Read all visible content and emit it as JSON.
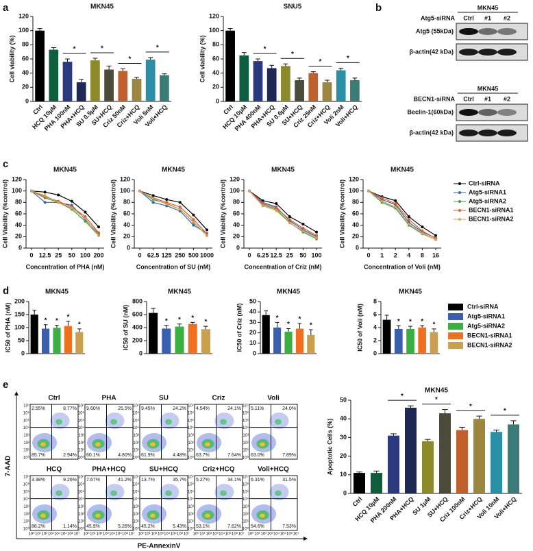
{
  "panel_labels": [
    "a",
    "b",
    "c",
    "d",
    "e"
  ],
  "chart_data": [
    {
      "type": "bar",
      "title": "MKN45",
      "ylabel": "Cell viability (%)",
      "categories": [
        "Ctrl",
        "HCQ 10μM",
        "PHA 100nM",
        "PHA+HCQ",
        "SU 0.5μM",
        "SU+HCQ",
        "Criz 50nM",
        "Criz+HCQ",
        "Voli 5nM",
        "Voli+HCQ"
      ],
      "values": [
        100,
        73,
        56,
        27,
        58,
        45,
        43,
        32,
        59,
        37
      ],
      "errors": [
        3,
        3,
        4,
        4,
        3,
        5,
        3,
        2,
        3,
        2
      ],
      "stars": [
        null,
        null,
        null,
        "*",
        null,
        "*",
        null,
        "*",
        null,
        "*"
      ],
      "colors": [
        "#000000",
        "#0d5e3c",
        "#2b3a7c",
        "#1e2a55",
        "#8c8a2a",
        "#4c4a38",
        "#c0602c",
        "#9c8640",
        "#2a8fa4",
        "#3c7c78"
      ],
      "ylim": [
        0,
        120
      ],
      "yticks": [
        0,
        20,
        40,
        60,
        80,
        100,
        120
      ]
    },
    {
      "type": "bar",
      "title": "SNU5",
      "ylabel": "Cell viability (%)",
      "categories": [
        "Ctrl",
        "HCQ 10μM",
        "PHA 400nM",
        "PHA+HCQ",
        "SU 0.6μM",
        "SU+HCQ",
        "Criz 25nM",
        "Criz+HCQ",
        "Voli 2nM",
        "Voli+HCQ"
      ],
      "values": [
        100,
        65,
        57,
        47,
        50,
        30,
        40,
        27,
        44,
        30
      ],
      "errors": [
        3,
        4,
        3,
        4,
        3,
        3,
        2,
        3,
        3,
        3
      ],
      "stars": [
        null,
        null,
        null,
        "*",
        null,
        "*",
        null,
        "*",
        null,
        "*"
      ],
      "colors": [
        "#000000",
        "#0d5e3c",
        "#2b3a7c",
        "#1e2a55",
        "#8c8a2a",
        "#4c4a38",
        "#c0602c",
        "#9c8640",
        "#2a8fa4",
        "#3c7c78"
      ],
      "ylim": [
        0,
        120
      ],
      "yticks": [
        0,
        20,
        40,
        60,
        80,
        100,
        120
      ]
    },
    {
      "type": "line",
      "title": "MKN45",
      "ylabel": "Cell Viability (%control)",
      "xlabel": "Concentration of PHA (nM)",
      "categories": [
        "0",
        "12.5",
        "25",
        "50",
        "100",
        "200"
      ],
      "series": [
        {
          "color": "#000000",
          "values": [
            100,
            98,
            93,
            82,
            63,
            37
          ]
        },
        {
          "color": "#3a5fb0",
          "values": [
            100,
            80,
            80,
            75,
            50,
            25
          ]
        },
        {
          "color": "#3aa040",
          "values": [
            100,
            88,
            80,
            68,
            47,
            22
          ]
        },
        {
          "color": "#e05a2a",
          "values": [
            100,
            90,
            82,
            72,
            55,
            27
          ]
        },
        {
          "color": "#d0a060",
          "values": [
            100,
            92,
            80,
            70,
            52,
            22
          ]
        }
      ],
      "ylim": [
        0,
        120
      ],
      "yticks": [
        0,
        20,
        40,
        60,
        80,
        100,
        120
      ]
    },
    {
      "type": "line",
      "title": "MKN45",
      "ylabel": "Cell Viability (%control)",
      "xlabel": "Concentration of SU (nM)",
      "categories": [
        "0",
        "62.5",
        "125",
        "250",
        "500",
        "1000"
      ],
      "series": [
        {
          "color": "#000000",
          "values": [
            100,
            92,
            85,
            80,
            58,
            32
          ]
        },
        {
          "color": "#3a5fb0",
          "values": [
            100,
            80,
            74,
            65,
            40,
            26
          ]
        },
        {
          "color": "#3aa040",
          "values": [
            100,
            85,
            78,
            68,
            45,
            22
          ]
        },
        {
          "color": "#e05a2a",
          "values": [
            100,
            88,
            80,
            72,
            50,
            25
          ]
        },
        {
          "color": "#d0a060",
          "values": [
            100,
            87,
            77,
            68,
            46,
            22
          ]
        }
      ],
      "ylim": [
        0,
        120
      ],
      "yticks": [
        0,
        20,
        40,
        60,
        80,
        100,
        120
      ]
    },
    {
      "type": "line",
      "title": "MKN45",
      "ylabel": "Cell Viability (%control)",
      "xlabel": "Concentration of Criz (nM)",
      "categories": [
        "0",
        "6.25",
        "12.5",
        "25",
        "50",
        "100"
      ],
      "series": [
        {
          "color": "#000000",
          "values": [
            100,
            83,
            78,
            55,
            42,
            28
          ]
        },
        {
          "color": "#3a5fb0",
          "values": [
            100,
            80,
            72,
            48,
            32,
            20
          ]
        },
        {
          "color": "#3aa040",
          "values": [
            100,
            76,
            68,
            45,
            28,
            16
          ]
        },
        {
          "color": "#e05a2a",
          "values": [
            100,
            78,
            70,
            50,
            35,
            22
          ]
        },
        {
          "color": "#d0a060",
          "values": [
            100,
            74,
            66,
            44,
            30,
            18
          ]
        }
      ],
      "ylim": [
        0,
        120
      ],
      "yticks": [
        0,
        20,
        40,
        60,
        80,
        100,
        120
      ]
    },
    {
      "type": "line",
      "title": "MKN45",
      "ylabel": "Cell Viability (%control)",
      "xlabel": "Concentration of Voli (nM)",
      "categories": [
        "0",
        "1",
        "2",
        "4",
        "8",
        "16"
      ],
      "series": [
        {
          "name": "Ctrl-siRNA",
          "color": "#000000",
          "values": [
            100,
            90,
            83,
            55,
            37,
            22
          ]
        },
        {
          "name": "Atg5-siRNA1",
          "color": "#3a5fb0",
          "values": [
            100,
            85,
            76,
            45,
            28,
            18
          ]
        },
        {
          "name": "Atg5-siRNA2",
          "color": "#3aa040",
          "values": [
            100,
            80,
            70,
            40,
            25,
            15
          ]
        },
        {
          "name": "BECN1-siRNA1",
          "color": "#e05a2a",
          "values": [
            100,
            88,
            78,
            50,
            30,
            17
          ]
        },
        {
          "name": "BECN1-siRNA2",
          "color": "#d0a060",
          "values": [
            100,
            82,
            72,
            42,
            26,
            15
          ]
        }
      ],
      "ylim": [
        0,
        120
      ],
      "yticks": [
        0,
        20,
        40,
        60,
        80,
        100,
        120
      ]
    },
    {
      "type": "bar",
      "title": "MKN45",
      "ylabel": "IC50 of PHA (nM)",
      "series": [
        {
          "color": "#000000",
          "values": [
            150
          ],
          "errors": [
            17
          ],
          "stars": [
            null
          ]
        },
        {
          "color": "#3a5fb0",
          "values": [
            96
          ],
          "errors": [
            15
          ],
          "stars": [
            "*"
          ]
        },
        {
          "color": "#3ab040",
          "values": [
            99
          ],
          "errors": [
            10
          ],
          "stars": [
            "*"
          ]
        },
        {
          "color": "#f07020",
          "values": [
            106
          ],
          "errors": [
            18
          ],
          "stars": [
            "*"
          ]
        },
        {
          "color": "#c8a050",
          "values": [
            83
          ],
          "errors": [
            12
          ],
          "stars": [
            "*"
          ]
        }
      ],
      "ylim": [
        0,
        200
      ],
      "yticks": [
        0,
        50,
        100,
        150,
        200
      ]
    },
    {
      "type": "bar",
      "title": "MKN45",
      "ylabel": "IC50 of SU (nM)",
      "series": [
        {
          "color": "#000000",
          "values": [
            625
          ],
          "errors": [
            70
          ],
          "stars": [
            null
          ]
        },
        {
          "color": "#3a5fb0",
          "values": [
            385
          ],
          "errors": [
            50
          ],
          "stars": [
            "*"
          ]
        },
        {
          "color": "#3ab040",
          "values": [
            415
          ],
          "errors": [
            40
          ],
          "stars": [
            "*"
          ]
        },
        {
          "color": "#f07020",
          "values": [
            455
          ],
          "errors": [
            25
          ],
          "stars": [
            "*"
          ]
        },
        {
          "color": "#c8a050",
          "values": [
            375
          ],
          "errors": [
            45
          ],
          "stars": [
            "*"
          ]
        }
      ],
      "ylim": [
        0,
        800
      ],
      "yticks": [
        0,
        200,
        400,
        600,
        800
      ]
    },
    {
      "type": "bar",
      "title": "MKN45",
      "ylabel": "IC50 of Criz (nM)",
      "series": [
        {
          "color": "#000000",
          "values": [
            37
          ],
          "errors": [
            4
          ],
          "stars": [
            null
          ]
        },
        {
          "color": "#3a5fb0",
          "values": [
            25
          ],
          "errors": [
            5
          ],
          "stars": [
            "*"
          ]
        },
        {
          "color": "#3ab040",
          "values": [
            21
          ],
          "errors": [
            3
          ],
          "stars": [
            "*"
          ]
        },
        {
          "color": "#f07020",
          "values": [
            24
          ],
          "errors": [
            5
          ],
          "stars": [
            "*"
          ]
        },
        {
          "color": "#c8a050",
          "values": [
            18
          ],
          "errors": [
            5
          ],
          "stars": [
            "*"
          ]
        }
      ],
      "ylim": [
        0,
        50
      ],
      "yticks": [
        0,
        10,
        20,
        30,
        40,
        50
      ]
    },
    {
      "type": "bar",
      "title": "MKN45",
      "ylabel": "IC50 of Voli (nM)",
      "series": [
        {
          "name": "Ctrl-siRNA",
          "color": "#000000",
          "values": [
            5.2
          ],
          "errors": [
            0.7
          ],
          "stars": [
            null
          ]
        },
        {
          "name": "Atg5-siRNA1",
          "color": "#3a5fb0",
          "values": [
            3.8
          ],
          "errors": [
            0.5
          ],
          "stars": [
            "*"
          ]
        },
        {
          "name": "Atg5-siRNA2",
          "color": "#3ab040",
          "values": [
            3.8
          ],
          "errors": [
            0.4
          ],
          "stars": [
            "*"
          ]
        },
        {
          "name": "BECN1-siRNA1",
          "color": "#f07020",
          "values": [
            4.0
          ],
          "errors": [
            0.3
          ],
          "stars": [
            "*"
          ]
        },
        {
          "name": "BECN1-siRNA2",
          "color": "#c8a050",
          "values": [
            3.3
          ],
          "errors": [
            0.5
          ],
          "stars": [
            "*"
          ]
        }
      ],
      "ylim": [
        0,
        8
      ],
      "yticks": [
        0,
        2,
        4,
        6,
        8
      ]
    },
    {
      "type": "bar",
      "title": "MKN45",
      "ylabel": "Apoptotic Cells (%)",
      "categories": [
        "Ctrl",
        "HCQ 10μM",
        "PHA 200nM",
        "PHA+HCQ",
        "SU 1μM",
        "SU+HCQ",
        "Criz 100nM",
        "Criz+HCQ",
        "Voli 10nM",
        "Voli+HCQ"
      ],
      "values": [
        11,
        11,
        31,
        46,
        28,
        43,
        34,
        40,
        33,
        37
      ],
      "errors": [
        0.5,
        1,
        1,
        1,
        1,
        2,
        1.5,
        1.5,
        1,
        2
      ],
      "stars": [
        null,
        null,
        null,
        "*",
        null,
        "*",
        null,
        "*",
        null,
        "*"
      ],
      "colors": [
        "#000000",
        "#0d5e3c",
        "#2b3a7c",
        "#1e2a55",
        "#8c8a2a",
        "#4c4a38",
        "#c0602c",
        "#9c8640",
        "#2a8fa4",
        "#3c7c78"
      ],
      "ylim": [
        0,
        50
      ],
      "yticks": [
        0,
        10,
        20,
        30,
        40,
        50
      ]
    }
  ],
  "blots": [
    {
      "title": "MKN45",
      "sirna": "Atg5-siRNA",
      "lanes": [
        "Ctrl",
        "#1",
        "#2"
      ],
      "rows": [
        "Atg5 (55kDa)",
        "β-actin(42 kDa)"
      ]
    },
    {
      "title": "MKN45",
      "sirna": "BECN1-siRNA",
      "lanes": [
        "Ctrl",
        "#1",
        "#2"
      ],
      "rows": [
        "Beclin-1(60kDa)",
        "β-actin(42 kDa)"
      ]
    }
  ],
  "flow": {
    "ylabel": "7-AAD",
    "xlabel": "PE-AnnexinV",
    "ticks": [
      "10⁰",
      "10¹",
      "10²",
      "10³",
      "10⁴",
      "10⁵",
      "10⁶",
      "10⁷"
    ],
    "plots": [
      {
        "title": "Ctrl",
        "ul": "2.55%",
        "ur": "8.77%",
        "ll": "85.7%",
        "lr": "2.94%"
      },
      {
        "title": "PHA",
        "ul": "9.60%",
        "ur": "25.5%",
        "ll": "60.1%",
        "lr": "4.80%"
      },
      {
        "title": "SU",
        "ul": "9.45%",
        "ur": "24.2%",
        "ll": "61.9%",
        "lr": "4.48%"
      },
      {
        "title": "Criz",
        "ul": "4.54%",
        "ur": "24.1%",
        "ll": "63.7%",
        "lr": "7.64%"
      },
      {
        "title": "Voli",
        "ul": "5.11%",
        "ur": "24.0%",
        "ll": "63.0%",
        "lr": "7.89%"
      },
      {
        "title": "HCQ",
        "ul": "3.38%",
        "ur": "9.26%",
        "ll": "86.2%",
        "lr": "1.14%"
      },
      {
        "title": "PHA+HCQ",
        "ul": "7.67%",
        "ur": "41.2%",
        "ll": "45.9%",
        "lr": "5.26%"
      },
      {
        "title": "SU+HCQ",
        "ul": "13.7%",
        "ur": "35.7%",
        "ll": "45.2%",
        "lr": "5.43%"
      },
      {
        "title": "Criz+HCQ",
        "ul": "5.27%",
        "ur": "34.1%",
        "ll": "53.1%",
        "lr": "7.62%"
      },
      {
        "title": "Voli+HCQ",
        "ul": "6.31%",
        "ur": "31.5%",
        "ll": "54.6%",
        "lr": "7.53%"
      }
    ]
  }
}
